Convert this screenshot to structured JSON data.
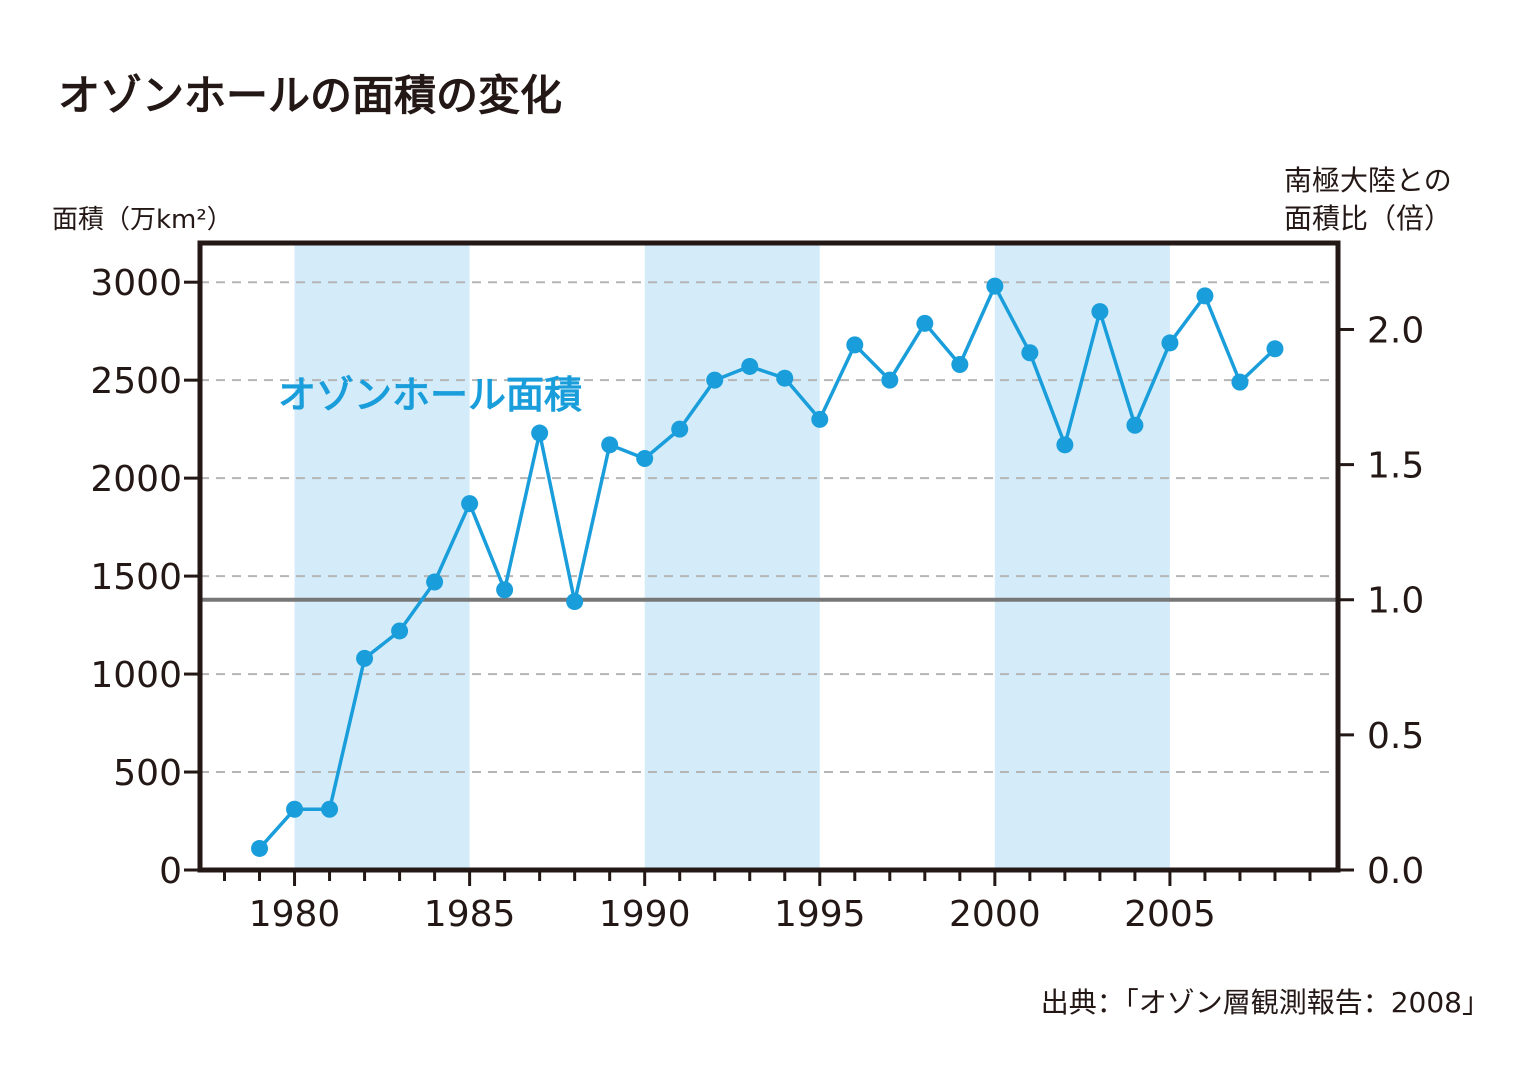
{
  "chart_data": {
    "type": "line",
    "title": "オゾンホールの面積の変化",
    "y_label": "面積（万km²）",
    "y2_label_line1": "南極大陸との",
    "y2_label_line2": "面積比（倍）",
    "series_label": "オゾンホール面積",
    "source": "出典：「オゾン層観測報告：2008」",
    "x_ticks": [
      "1980",
      "1985",
      "1990",
      "1995",
      "2000",
      "2005"
    ],
    "y_ticks": [
      "0",
      "500",
      "1000",
      "1500",
      "2000",
      "2500",
      "3000"
    ],
    "y2_ticks": [
      "0.0",
      "0.5",
      "1.0",
      "1.5",
      "2.0"
    ],
    "xlim": [
      1977.3,
      2009.8
    ],
    "ylim": [
      0,
      3200
    ],
    "y2lim": [
      0,
      2.32
    ],
    "reference_line_value": 1380,
    "reference_ratio": 1.0,
    "shaded_periods": [
      [
        1980,
        1985
      ],
      [
        1990,
        1995
      ],
      [
        2000,
        2005
      ]
    ],
    "grid": "horizontal dashed",
    "series": [
      {
        "name": "オゾンホール面積",
        "x": [
          1979,
          1980,
          1981,
          1982,
          1983,
          1984,
          1985,
          1986,
          1987,
          1988,
          1989,
          1990,
          1991,
          1992,
          1993,
          1994,
          1995,
          1996,
          1997,
          1998,
          1999,
          2000,
          2001,
          2002,
          2003,
          2004,
          2005,
          2006,
          2007,
          2008
        ],
        "y": [
          110,
          310,
          310,
          1080,
          1220,
          1470,
          1870,
          1430,
          2230,
          1370,
          2170,
          2100,
          2250,
          2500,
          2570,
          2510,
          2300,
          2680,
          2500,
          2790,
          2580,
          2980,
          2640,
          2170,
          2850,
          2270,
          2690,
          2930,
          2490,
          2660
        ]
      }
    ],
    "colors": {
      "line": "#1a9edb",
      "shade": "#d4ecf9",
      "reference": "#777777",
      "grid": "#b5b5b5",
      "frame": "#231815"
    }
  }
}
